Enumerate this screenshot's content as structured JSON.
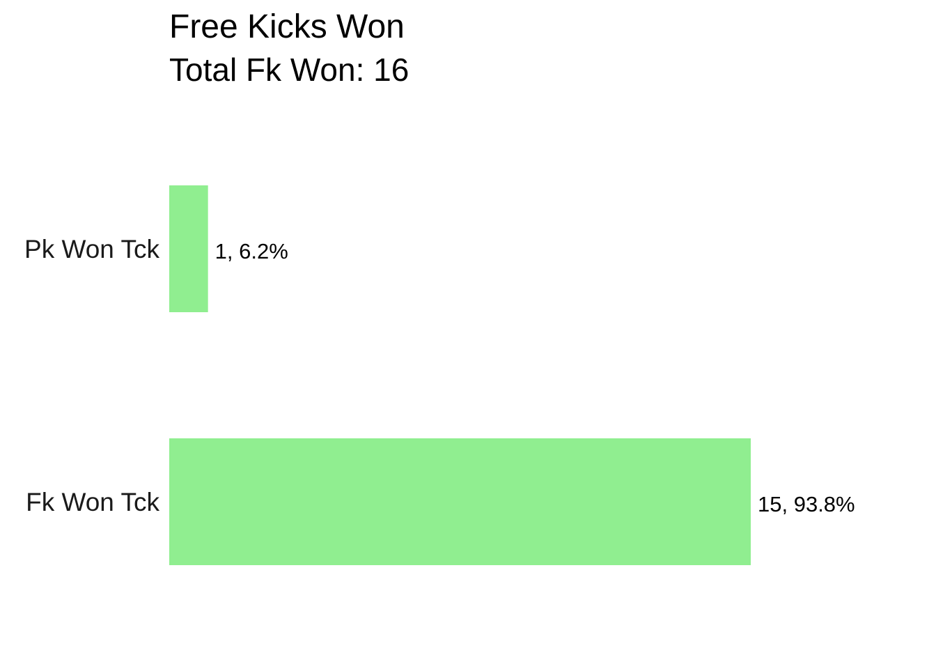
{
  "chart_data": {
    "type": "bar",
    "orientation": "horizontal",
    "title": "Free Kicks Won",
    "subtitle": "Total Fk Won: 16",
    "xlabel": "",
    "ylabel": "",
    "categories": [
      "Pk Won Tck",
      "Fk Won Tck"
    ],
    "values": [
      1,
      15
    ],
    "data_labels": [
      "1, 6.2%",
      "15, 93.8%"
    ],
    "xlim": [
      0,
      15
    ],
    "grid": false,
    "legend": "none",
    "bar_color": "#90ee90"
  }
}
